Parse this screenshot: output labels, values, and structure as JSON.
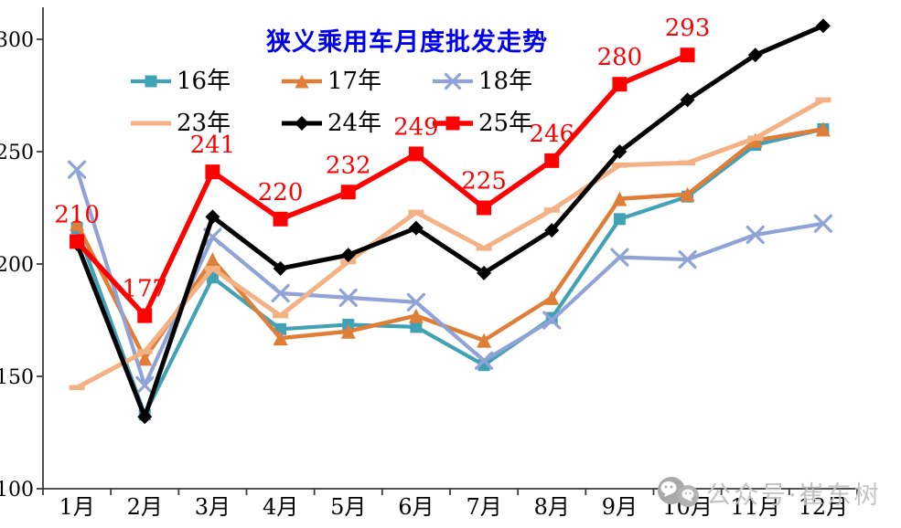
{
  "title": {
    "text": "狭义乘用车月度批发走势",
    "color": "#0000EE"
  },
  "watermark": {
    "text": "公众号·崔东树",
    "icon": "wechat-icon",
    "icon_color": "#a9a9a9",
    "text_color": "#c3c3c3"
  },
  "axis": {
    "color": "#3a3a3a",
    "label_color": "#000000"
  },
  "chart_data": {
    "type": "line",
    "title": "狭义乘用车月度批发走势",
    "xlabel": "",
    "ylabel": "",
    "grid": false,
    "legend_position": "top-left-two-rows",
    "categories": [
      "1月",
      "2月",
      "3月",
      "4月",
      "5月",
      "6月",
      "7月",
      "8月",
      "9月",
      "10月",
      "11月",
      "12月"
    ],
    "y_ticks": [
      100,
      150,
      200,
      250,
      300
    ],
    "ylim": [
      100,
      310
    ],
    "series": [
      {
        "name": "16年",
        "color": "#41A2B5",
        "marker": "square",
        "marker_size": 13,
        "line_width": 4.2,
        "values": [
          216,
          133,
          194,
          171,
          173,
          172,
          155,
          176,
          220,
          230,
          253,
          260
        ]
      },
      {
        "name": "17年",
        "color": "#E07E38",
        "marker": "triangle",
        "marker_size": 16,
        "line_width": 4.5,
        "values": [
          218,
          158,
          202,
          167,
          170,
          177,
          166,
          185,
          229,
          231,
          255,
          260
        ]
      },
      {
        "name": "18年",
        "color": "#8FA3D6",
        "marker": "x",
        "marker_size": 17,
        "line_width": 4.2,
        "values": [
          242,
          146,
          212,
          187,
          185,
          183,
          157,
          175,
          203,
          202,
          213,
          218
        ]
      },
      {
        "name": "23年",
        "color": "#F4B183",
        "marker": "dash",
        "marker_size": 17,
        "line_width": 5,
        "values": [
          145,
          161,
          198,
          177,
          201,
          223,
          207,
          224,
          244,
          245,
          256,
          273
        ]
      },
      {
        "name": "24年",
        "color": "#000000",
        "marker": "diamond",
        "marker_size": 14,
        "line_width": 5,
        "values": [
          209,
          132,
          221,
          198,
          204,
          216,
          196,
          215,
          250,
          273,
          293,
          306
        ]
      },
      {
        "name": "25年",
        "color": "#FF0000",
        "marker": "square",
        "marker_size": 16,
        "line_width": 5.5,
        "data_labels": true,
        "label_color": "#FF0000",
        "values": [
          210,
          177,
          241,
          220,
          232,
          249,
          225,
          246,
          280,
          293,
          null,
          null
        ]
      }
    ]
  }
}
